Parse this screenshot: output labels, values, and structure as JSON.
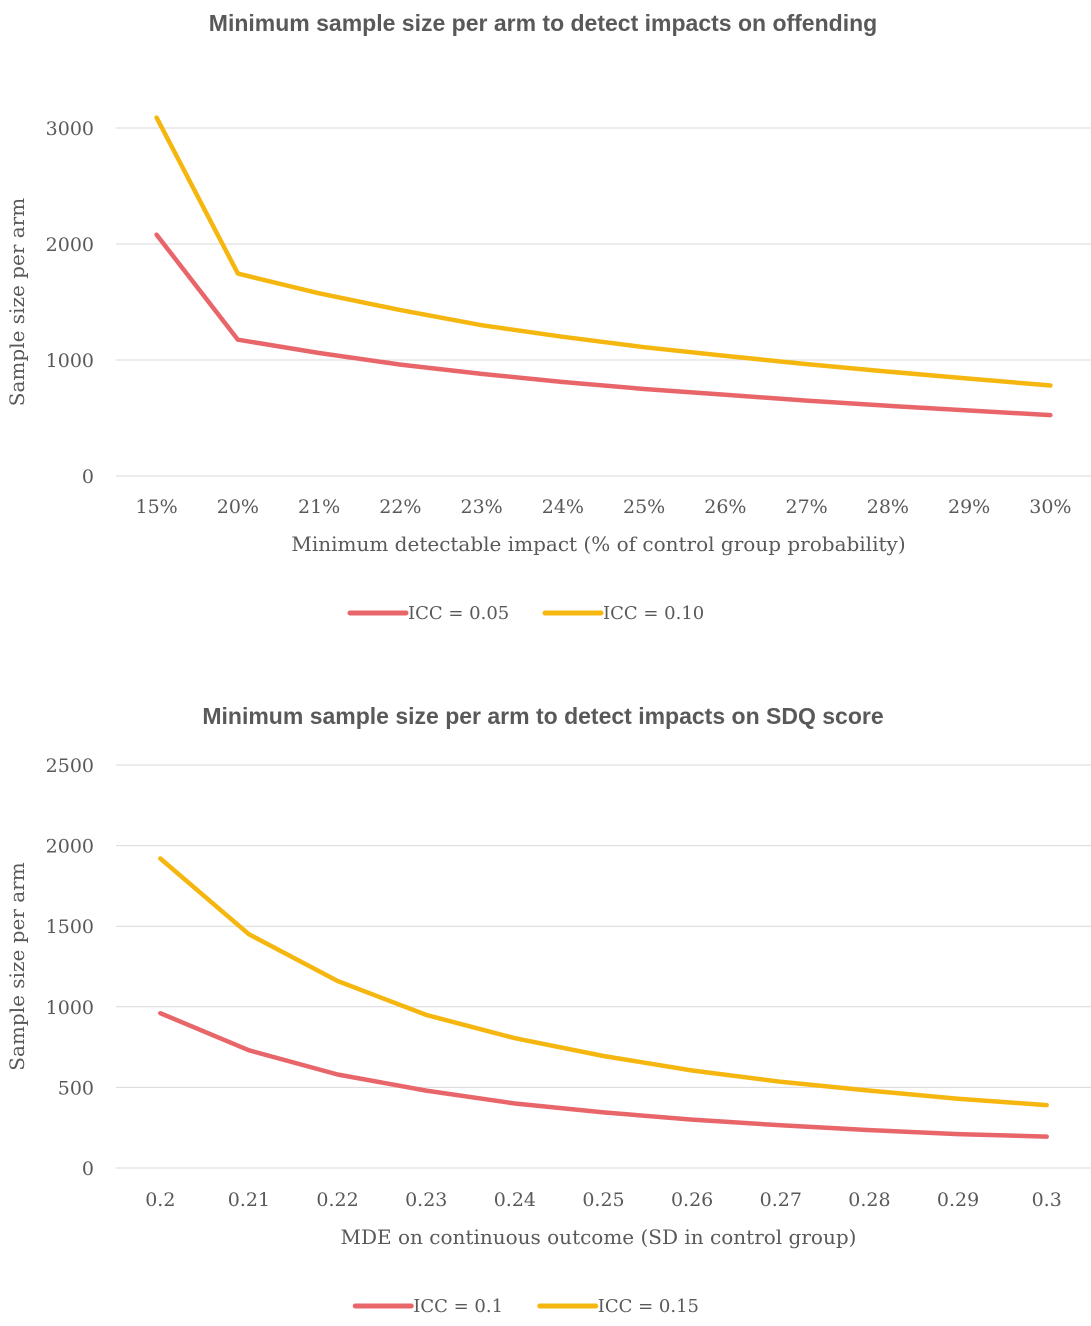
{
  "chart_data": [
    {
      "type": "line",
      "title": "Minimum sample size per arm to detect impacts on offending",
      "xlabel": "Minimum detectable impact (% of control group probability)",
      "ylabel": "Sample size per arm",
      "categories": [
        "15%",
        "20%",
        "21%",
        "22%",
        "23%",
        "24%",
        "25%",
        "26%",
        "27%",
        "28%",
        "29%",
        "30%"
      ],
      "ylim": [
        0,
        3000
      ],
      "yticks": [
        0,
        1000,
        2000,
        3000
      ],
      "grid": true,
      "legend_position": "bottom",
      "series": [
        {
          "name": "ICC = 0.05",
          "color": "#e8666a",
          "values": [
            2080,
            1175,
            1060,
            960,
            880,
            810,
            750,
            700,
            650,
            605,
            565,
            525
          ]
        },
        {
          "name": "ICC = 0.10",
          "color": "#f5b70f",
          "values": [
            3090,
            1745,
            1575,
            1430,
            1300,
            1200,
            1110,
            1035,
            965,
            900,
            840,
            780
          ]
        }
      ]
    },
    {
      "type": "line",
      "title": "Minimum sample size per arm to detect impacts on SDQ score",
      "xlabel": "MDE on continuous outcome (SD in control group)",
      "ylabel": "Sample size per arm",
      "categories": [
        "0.2",
        "0.21",
        "0.22",
        "0.23",
        "0.24",
        "0.25",
        "0.26",
        "0.27",
        "0.28",
        "0.29",
        "0.3"
      ],
      "ylim": [
        0,
        2500
      ],
      "yticks": [
        0,
        500,
        1000,
        1500,
        2000,
        2500
      ],
      "grid": true,
      "legend_position": "bottom",
      "series": [
        {
          "name": "ICC = 0.1",
          "color": "#e8666a",
          "values": [
            960,
            730,
            580,
            480,
            400,
            345,
            300,
            265,
            235,
            210,
            195
          ]
        },
        {
          "name": "ICC = 0.15",
          "color": "#f5b70f",
          "values": [
            1920,
            1450,
            1160,
            950,
            805,
            695,
            605,
            535,
            480,
            430,
            390
          ]
        }
      ]
    }
  ]
}
